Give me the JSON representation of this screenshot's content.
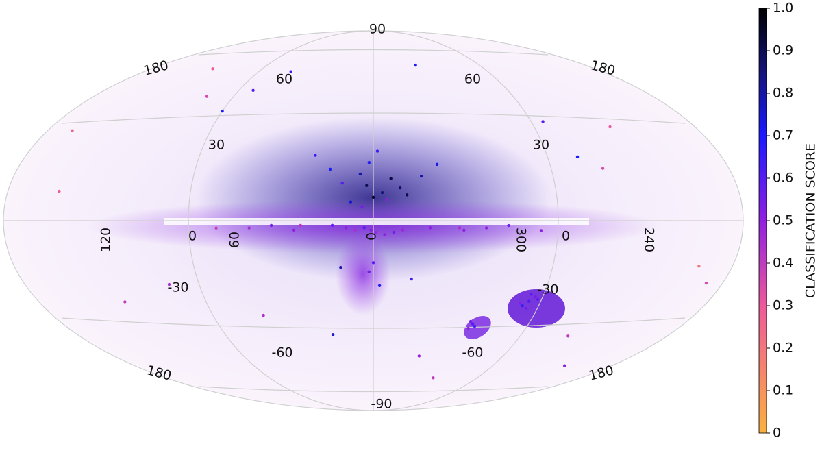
{
  "chart_data": {
    "type": "skymap",
    "projection": "hammer",
    "grid_labels": [
      90,
      180,
      60,
      60,
      180,
      30,
      30,
      120,
      0,
      60,
      0,
      300,
      0,
      240,
      -30,
      -30,
      -60,
      -60,
      180,
      180,
      -90
    ],
    "points": {
      "lon": [
        0,
        3,
        -4,
        6,
        -8,
        10,
        -12,
        2,
        -2,
        5,
        -6,
        14,
        -15,
        20,
        -22,
        28,
        -30,
        35,
        -38,
        45,
        -50,
        1,
        -1,
        4,
        -5,
        8,
        -9,
        12,
        -13,
        18,
        -25,
        32,
        -40,
        55,
        -60,
        70,
        -75,
        90,
        -95,
        110,
        -120,
        140,
        -150,
        165,
        -170,
        -80,
        -82,
        -78,
        -84,
        -76,
        -79,
        -81,
        -57,
        -55,
        -59,
        -56,
        60,
        -100,
        130,
        -130,
        25,
        -35,
        75,
        -65,
        150,
        -160,
        100,
        -110,
        85,
        -45,
        15,
        -18,
        0,
        2,
        -3
      ],
      "lat": [
        10,
        15,
        12,
        20,
        18,
        8,
        14,
        25,
        30,
        6,
        9,
        16,
        11,
        22,
        19,
        28,
        24,
        -4,
        -3,
        -2,
        -3,
        -4,
        -5,
        -3,
        -6,
        -4,
        -5,
        -3,
        -4,
        -2,
        -3,
        -2,
        -4,
        -3,
        -2,
        -3,
        -4,
        45,
        40,
        50,
        -45,
        60,
        -55,
        30,
        -20,
        -33,
        -31,
        -35,
        -32,
        -34,
        -30,
        -36,
        -44,
        -43,
        -45,
        -46,
        -40,
        25,
        -30,
        35,
        -50,
        -60,
        65,
        -70,
        10,
        -15,
        -25,
        20,
        55,
        70,
        -20,
        -25,
        -18,
        -22,
        -28
      ],
      "score": [
        0.95,
        0.9,
        0.85,
        0.8,
        0.92,
        0.75,
        0.88,
        0.7,
        0.65,
        0.55,
        0.5,
        0.6,
        0.9,
        0.7,
        0.8,
        0.65,
        0.72,
        0.5,
        0.45,
        0.55,
        0.5,
        0.52,
        0.48,
        0.6,
        0.5,
        0.45,
        0.55,
        0.5,
        0.48,
        0.58,
        0.5,
        0.42,
        0.5,
        0.45,
        0.55,
        0.4,
        0.5,
        0.7,
        0.6,
        0.35,
        0.4,
        0.3,
        0.5,
        0.25,
        0.35,
        0.6,
        0.55,
        0.65,
        0.58,
        0.52,
        0.6,
        0.55,
        0.6,
        0.55,
        0.62,
        0.5,
        0.45,
        0.7,
        0.4,
        0.3,
        0.75,
        0.5,
        0.65,
        0.4,
        0.3,
        0.2,
        0.45,
        0.35,
        0.6,
        0.7,
        0.8,
        0.65,
        0.6,
        0.55,
        0.7
      ]
    },
    "colorbar": {
      "label": "CLASSIFICATION SCORE",
      "lim": [
        0,
        1
      ],
      "ticks": [
        0,
        0.1,
        0.2,
        0.3,
        0.4,
        0.5,
        0.6,
        0.7,
        0.8,
        0.9,
        {
          "value": 1,
          "label": "1.0"
        }
      ]
    }
  }
}
